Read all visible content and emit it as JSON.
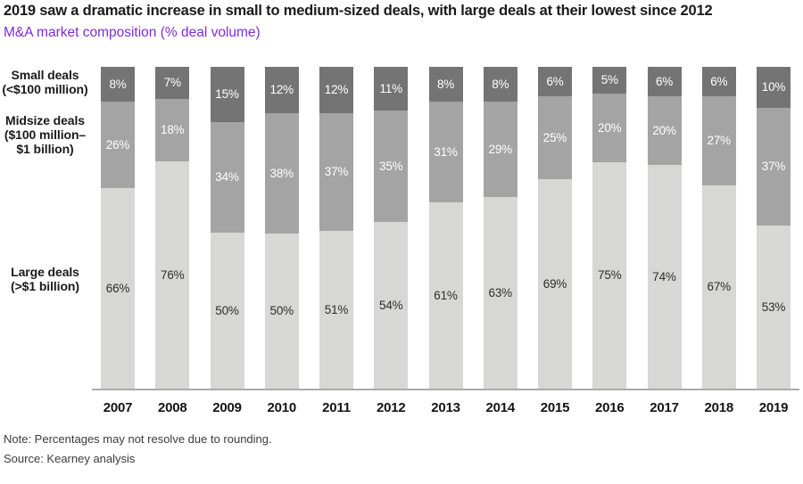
{
  "header": {
    "title": "2019 saw a dramatic increase in small to medium-sized deals, with large deals at their lowest since 2012",
    "subtitle": "M&A market composition (% deal volume)"
  },
  "axis_labels": {
    "small": [
      "Small deals",
      "(<$100 million)"
    ],
    "midsize": [
      "Midsize deals",
      "($100 million–",
      "$1 billion)"
    ],
    "large": [
      "Large deals",
      "(>$1 billion)"
    ]
  },
  "chart_data": {
    "type": "bar",
    "stacked": true,
    "title": "M&A market composition (% deal volume)",
    "categories": [
      "2007",
      "2008",
      "2009",
      "2010",
      "2011",
      "2012",
      "2013",
      "2014",
      "2015",
      "2016",
      "2017",
      "2018",
      "2019"
    ],
    "series": [
      {
        "name": "Small deals (<$100 million)",
        "color": "#747474",
        "label_color": "#ffffff",
        "values": [
          8,
          7,
          15,
          12,
          12,
          11,
          8,
          8,
          6,
          5,
          6,
          6,
          10
        ]
      },
      {
        "name": "Midsize deals ($100 million–$1 billion)",
        "color": "#a4a4a4",
        "label_color": "#ffffff",
        "values": [
          26,
          18,
          34,
          38,
          37,
          35,
          31,
          29,
          25,
          20,
          20,
          27,
          37
        ]
      },
      {
        "name": "Large deals (>$1 billion)",
        "color": "#d7d7d6",
        "label_color": "#2e2e2e",
        "values": [
          66,
          76,
          50,
          50,
          51,
          54,
          61,
          63,
          69,
          75,
          74,
          67,
          53
        ]
      }
    ],
    "value_suffix": "%",
    "ylim": [
      0,
      100
    ],
    "grid": false,
    "legend_position": "left-axis-labels"
  },
  "footer": {
    "note": "Note: Percentages may not resolve due to rounding.",
    "source": "Source: Kearney analysis"
  }
}
